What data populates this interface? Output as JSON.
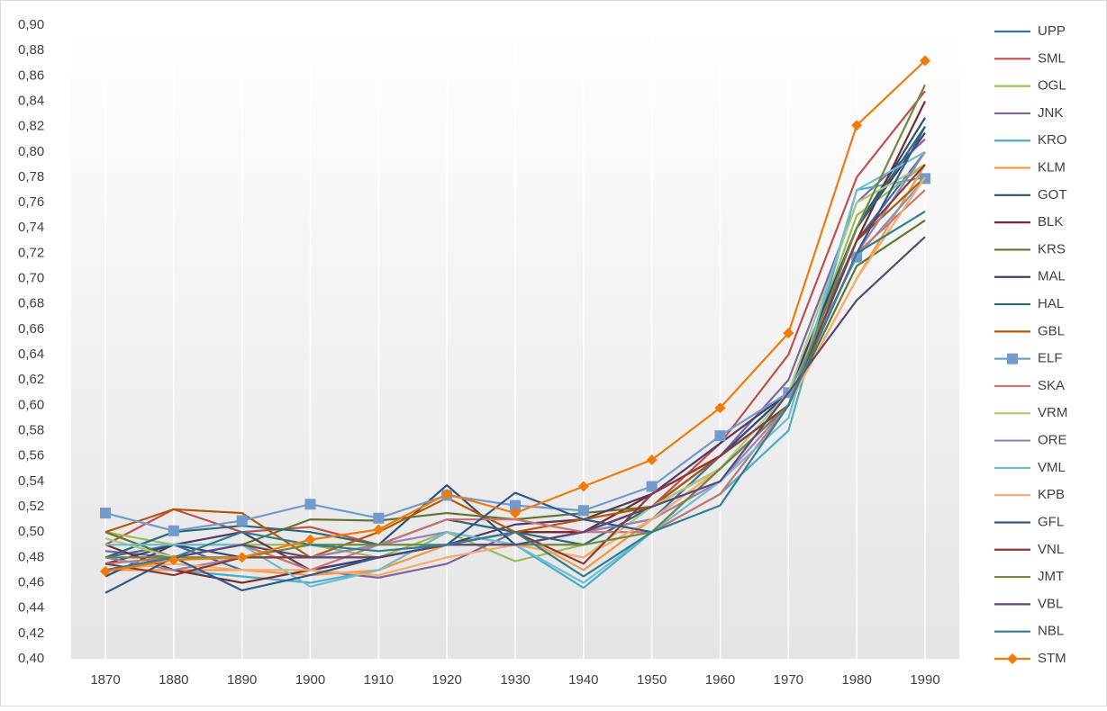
{
  "chart_data": {
    "type": "line",
    "categories": [
      "1870",
      "1880",
      "1890",
      "1900",
      "1910",
      "1920",
      "1930",
      "1940",
      "1950",
      "1960",
      "1970",
      "1980",
      "1990"
    ],
    "ylim": [
      0.4,
      0.9
    ],
    "yticks": [
      {
        "value": 0.4,
        "label": "0,40"
      },
      {
        "value": 0.42,
        "label": "0,42"
      },
      {
        "value": 0.44,
        "label": "0,44"
      },
      {
        "value": 0.46,
        "label": "0,46"
      },
      {
        "value": 0.48,
        "label": "0,48"
      },
      {
        "value": 0.5,
        "label": "0,50"
      },
      {
        "value": 0.52,
        "label": "0,52"
      },
      {
        "value": 0.54,
        "label": "0,54"
      },
      {
        "value": 0.56,
        "label": "0,56"
      },
      {
        "value": 0.58,
        "label": "0,58"
      },
      {
        "value": 0.6,
        "label": "0,60"
      },
      {
        "value": 0.62,
        "label": "0,62"
      },
      {
        "value": 0.64,
        "label": "0,64"
      },
      {
        "value": 0.66,
        "label": "0,66"
      },
      {
        "value": 0.68,
        "label": "0,68"
      },
      {
        "value": 0.7,
        "label": "0,70"
      },
      {
        "value": 0.72,
        "label": "0,72"
      },
      {
        "value": 0.74,
        "label": "0,74"
      },
      {
        "value": 0.76,
        "label": "0,76"
      },
      {
        "value": 0.78,
        "label": "0,78"
      },
      {
        "value": 0.8,
        "label": "0,80"
      },
      {
        "value": 0.82,
        "label": "0,82"
      },
      {
        "value": 0.84,
        "label": "0,84"
      },
      {
        "value": 0.86,
        "label": "0,86"
      },
      {
        "value": 0.88,
        "label": "0,88"
      },
      {
        "value": 0.9,
        "label": "0,90"
      }
    ],
    "legend": "right",
    "series": [
      {
        "name": "UPP",
        "color": "#3a6fa8",
        "values": [
          0.48,
          0.49,
          0.47,
          0.47,
          0.48,
          0.49,
          0.5,
          0.5,
          0.51,
          0.56,
          0.61,
          0.73,
          0.8
        ]
      },
      {
        "name": "SML",
        "color": "#c0504d",
        "values": [
          0.49,
          0.518,
          0.5,
          0.504,
          0.49,
          0.51,
          0.5,
          0.5,
          0.52,
          0.57,
          0.64,
          0.78,
          0.848
        ]
      },
      {
        "name": "OGL",
        "color": "#9bbb59",
        "values": [
          0.5,
          0.49,
          0.49,
          0.49,
          0.48,
          0.5,
          0.477,
          0.49,
          0.52,
          0.55,
          0.6,
          0.75,
          0.79
        ]
      },
      {
        "name": "JNK",
        "color": "#8064a2",
        "values": [
          0.485,
          0.48,
          0.49,
          0.47,
          0.464,
          0.475,
          0.5,
          0.5,
          0.53,
          0.56,
          0.62,
          0.76,
          0.81
        ]
      },
      {
        "name": "KRO",
        "color": "#4bacc6",
        "values": [
          0.47,
          0.47,
          0.465,
          0.46,
          0.47,
          0.5,
          0.49,
          0.456,
          0.5,
          0.53,
          0.58,
          0.77,
          0.78
        ]
      },
      {
        "name": "KLM",
        "color": "#f79646",
        "values": [
          0.47,
          0.47,
          0.47,
          0.466,
          0.47,
          0.49,
          0.5,
          0.47,
          0.51,
          0.55,
          0.6,
          0.7,
          0.79
        ]
      },
      {
        "name": "GOT",
        "color": "#2c4d75",
        "values": [
          0.465,
          0.49,
          0.48,
          0.48,
          0.49,
          0.537,
          0.49,
          0.5,
          0.52,
          0.56,
          0.61,
          0.74,
          0.827
        ]
      },
      {
        "name": "BLK",
        "color": "#772c2a",
        "values": [
          0.49,
          0.47,
          0.46,
          0.47,
          0.48,
          0.49,
          0.5,
          0.5,
          0.53,
          0.56,
          0.6,
          0.73,
          0.84
        ]
      },
      {
        "name": "KRS",
        "color": "#5f7530",
        "values": [
          0.5,
          0.48,
          0.49,
          0.51,
          0.509,
          0.515,
          0.51,
          0.515,
          0.52,
          0.55,
          0.6,
          0.71,
          0.746
        ]
      },
      {
        "name": "MAL",
        "color": "#4d3b62",
        "values": [
          0.475,
          0.49,
          0.5,
          0.47,
          0.48,
          0.49,
          0.506,
          0.51,
          0.53,
          0.57,
          0.61,
          0.74,
          0.815
        ]
      },
      {
        "name": "HAL",
        "color": "#276a7c",
        "values": [
          0.48,
          0.5,
          0.505,
          0.5,
          0.49,
          0.51,
          0.5,
          0.49,
          0.52,
          0.56,
          0.6,
          0.74,
          0.82
        ]
      },
      {
        "name": "GBL",
        "color": "#b65708",
        "values": [
          0.5,
          0.518,
          0.515,
          0.48,
          0.5,
          0.527,
          0.5,
          0.51,
          0.52,
          0.56,
          0.6,
          0.73,
          0.78
        ]
      },
      {
        "name": "ELF",
        "color": "#729aca",
        "marker": "square",
        "values": [
          0.515,
          0.501,
          0.509,
          0.522,
          0.511,
          0.529,
          0.521,
          0.517,
          0.536,
          0.576,
          0.61,
          0.717,
          0.779
        ]
      },
      {
        "name": "SKA",
        "color": "#cd7371",
        "values": [
          0.475,
          0.48,
          0.49,
          0.47,
          0.49,
          0.51,
          0.51,
          0.5,
          0.5,
          0.53,
          0.6,
          0.72,
          0.77
        ]
      },
      {
        "name": "VRM",
        "color": "#afc97a",
        "values": [
          0.495,
          0.48,
          0.48,
          0.48,
          0.49,
          0.5,
          0.49,
          0.48,
          0.52,
          0.55,
          0.61,
          0.76,
          0.79
        ]
      },
      {
        "name": "ORE",
        "color": "#9983b5",
        "values": [
          0.48,
          0.47,
          0.48,
          0.48,
          0.49,
          0.5,
          0.49,
          0.5,
          0.51,
          0.54,
          0.6,
          0.72,
          0.8
        ]
      },
      {
        "name": "VML",
        "color": "#6fbdd1",
        "values": [
          0.49,
          0.49,
          0.49,
          0.457,
          0.47,
          0.5,
          0.49,
          0.46,
          0.5,
          0.54,
          0.59,
          0.77,
          0.8
        ]
      },
      {
        "name": "KPB",
        "color": "#f9ab6b",
        "values": [
          0.47,
          0.475,
          0.47,
          0.47,
          0.466,
          0.48,
          0.49,
          0.48,
          0.51,
          0.55,
          0.6,
          0.7,
          0.78
        ]
      },
      {
        "name": "GFL",
        "color": "#2f5a8f",
        "values": [
          0.452,
          0.48,
          0.454,
          0.466,
          0.48,
          0.49,
          0.531,
          0.51,
          0.5,
          0.55,
          0.6,
          0.72,
          0.82
        ]
      },
      {
        "name": "VNL",
        "color": "#8c3836",
        "values": [
          0.475,
          0.466,
          0.48,
          0.48,
          0.48,
          0.49,
          0.5,
          0.475,
          0.53,
          0.56,
          0.6,
          0.73,
          0.79
        ]
      },
      {
        "name": "JMT",
        "color": "#71893f",
        "values": [
          0.48,
          0.48,
          0.48,
          0.49,
          0.49,
          0.49,
          0.49,
          0.49,
          0.5,
          0.55,
          0.6,
          0.74,
          0.853
        ]
      },
      {
        "name": "VBL",
        "color": "#5c4776",
        "values": [
          0.47,
          0.48,
          0.49,
          0.48,
          0.48,
          0.49,
          0.49,
          0.5,
          0.52,
          0.54,
          0.61,
          0.683,
          0.733
        ]
      },
      {
        "name": "NBL",
        "color": "#2f7e93",
        "values": [
          0.47,
          0.48,
          0.5,
          0.49,
          0.485,
          0.49,
          0.5,
          0.465,
          0.5,
          0.521,
          0.6,
          0.72,
          0.753
        ]
      },
      {
        "name": "STM",
        "color": "#f07b0c",
        "marker": "diamond",
        "values": [
          0.469,
          0.478,
          0.48,
          0.494,
          0.502,
          0.53,
          0.515,
          0.536,
          0.557,
          0.598,
          0.657,
          0.821,
          0.872
        ]
      }
    ]
  }
}
